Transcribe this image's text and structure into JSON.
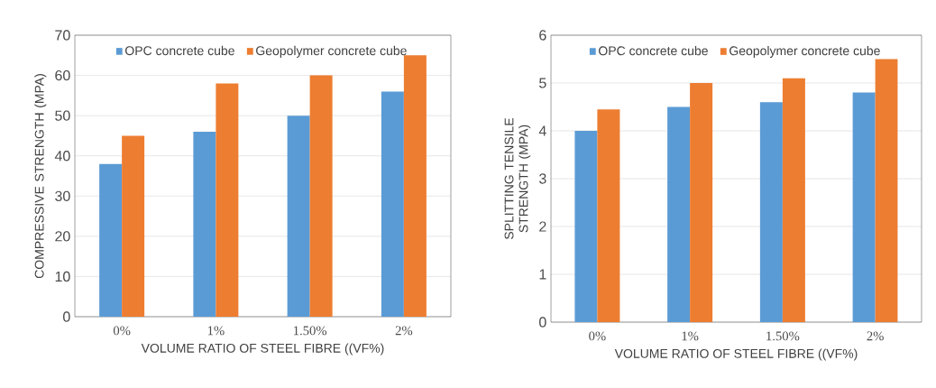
{
  "chart_data": [
    {
      "type": "bar",
      "categories": [
        "0%",
        "1%",
        "1.50%",
        "2%"
      ],
      "xlabel": "VOLUME RATIO OF STEEL FIBRE ((VF%)",
      "ylabel": "COMPRESSIVE STRENGTH (MPA)",
      "ylim": [
        0,
        70
      ],
      "yticks": [
        0,
        10,
        20,
        30,
        40,
        50,
        60,
        70
      ],
      "grid": "y",
      "legend": "top",
      "series": [
        {
          "name": "OPC concrete cube",
          "color": "#5b9bd5",
          "values": [
            38,
            46,
            50,
            56
          ]
        },
        {
          "name": "Geopolymer concrete cube",
          "color": "#ed7d31",
          "values": [
            45,
            58,
            60,
            65
          ]
        }
      ]
    },
    {
      "type": "bar",
      "categories": [
        "0%",
        "1%",
        "1.50%",
        "2%"
      ],
      "xlabel": "VOLUME RATIO OF STEEL FIBRE ((VF%)",
      "ylabel": "SPLITTING TENSILE STRENGTH (MPA)",
      "ylim": [
        0,
        6
      ],
      "yticks": [
        0,
        1,
        2,
        3,
        4,
        5,
        6
      ],
      "grid": "y",
      "legend": "top",
      "series": [
        {
          "name": "OPC concrete cube",
          "color": "#5b9bd5",
          "values": [
            4.0,
            4.5,
            4.6,
            4.8
          ]
        },
        {
          "name": "Geopolymer concrete cube",
          "color": "#ed7d31",
          "values": [
            4.45,
            5.0,
            5.1,
            5.5
          ]
        }
      ]
    }
  ]
}
